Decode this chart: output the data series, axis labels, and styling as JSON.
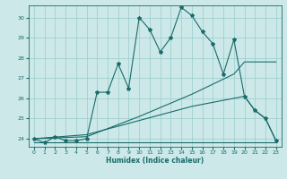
{
  "xlabel": "Humidex (Indice chaleur)",
  "bg_color": "#cce8e8",
  "line_color": "#1a6b6b",
  "grid_color": "#99cccc",
  "xlim": [
    -0.5,
    23.5
  ],
  "ylim": [
    23.6,
    30.6
  ],
  "yticks": [
    24,
    25,
    26,
    27,
    28,
    29,
    30
  ],
  "xticks": [
    0,
    1,
    2,
    3,
    4,
    5,
    6,
    7,
    8,
    9,
    10,
    11,
    12,
    13,
    14,
    15,
    16,
    17,
    18,
    19,
    20,
    21,
    22,
    23
  ],
  "series1_x": [
    0,
    1,
    2,
    3,
    4,
    5,
    6,
    7,
    8,
    9,
    10,
    11,
    12,
    13,
    14,
    15,
    16,
    17,
    18,
    19,
    20,
    21,
    22,
    23
  ],
  "series1_y": [
    24.0,
    23.8,
    24.1,
    23.9,
    23.9,
    24.0,
    26.3,
    26.3,
    27.7,
    26.5,
    30.0,
    29.4,
    28.3,
    29.0,
    30.5,
    30.1,
    29.3,
    28.7,
    27.2,
    28.9,
    26.1,
    25.4,
    25.0,
    23.9
  ],
  "series2_x": [
    0,
    5,
    10,
    15,
    19,
    20,
    23
  ],
  "series2_y": [
    24.0,
    24.1,
    25.1,
    26.2,
    27.2,
    27.8,
    27.8
  ],
  "series3_x": [
    0,
    5,
    10,
    15,
    20,
    21,
    22,
    23
  ],
  "series3_y": [
    24.0,
    24.2,
    24.9,
    25.6,
    26.1,
    25.4,
    25.0,
    23.9
  ],
  "series4_x": [
    0,
    5,
    10,
    15,
    20,
    23
  ],
  "series4_y": [
    23.8,
    23.8,
    23.8,
    23.8,
    23.8,
    23.8
  ]
}
